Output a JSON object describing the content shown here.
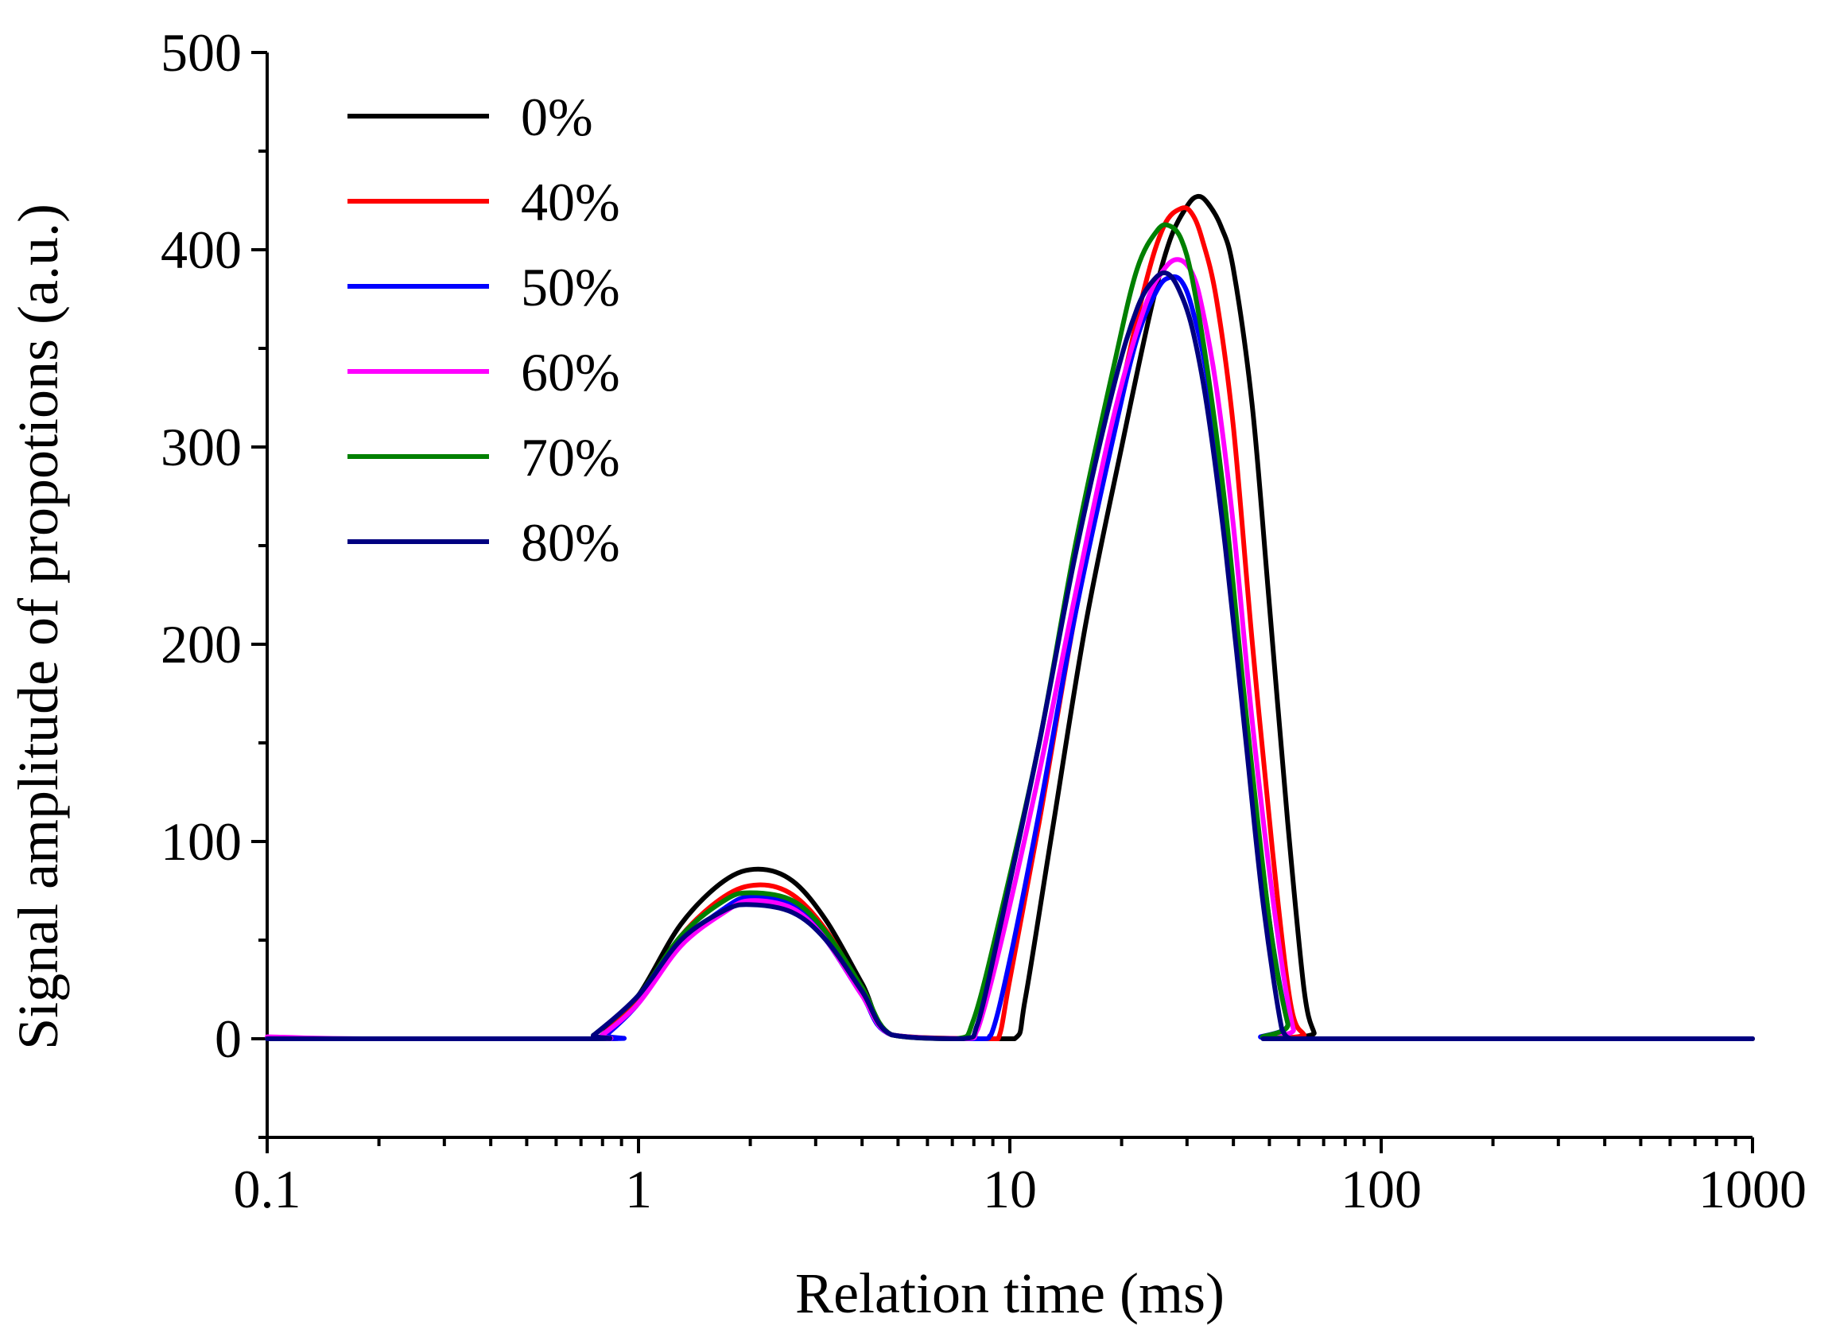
{
  "chart_data": {
    "type": "line",
    "title": "",
    "xlabel": "Relation time (ms)",
    "ylabel": "Signal amplitude of propotions (a.u.)",
    "xscale": "log",
    "xlim": [
      0.1,
      1000
    ],
    "ylim": [
      -50,
      500
    ],
    "xticks": [
      0.1,
      1,
      10,
      100,
      1000
    ],
    "xtick_labels": [
      "0.1",
      "1",
      "10",
      "100",
      "1000"
    ],
    "yticks": [
      0,
      100,
      200,
      300,
      400,
      500
    ],
    "ytick_labels": [
      "0",
      "100",
      "200",
      "300",
      "400",
      "500"
    ],
    "grid": false,
    "legend_position": "top-left",
    "series": [
      {
        "name": "0%",
        "color": "#000000",
        "x": [
          0.1,
          0.75,
          0.8,
          1.0,
          1.3,
          1.7,
          2.1,
          2.6,
          3.2,
          4.0,
          4.8,
          8.0,
          10.3,
          11,
          13,
          16,
          20,
          24,
          27,
          30,
          32,
          34,
          37,
          40,
          45,
          50,
          56,
          62,
          66,
          68,
          1000
        ],
        "y": [
          0,
          0,
          2,
          22,
          58,
          80,
          86,
          80,
          60,
          28,
          2,
          0,
          0,
          20,
          105,
          210,
          300,
          370,
          405,
          422,
          427,
          424,
          412,
          390,
          320,
          220,
          110,
          25,
          3,
          0,
          0
        ]
      },
      {
        "name": "40%",
        "color": "#ff0000",
        "x": [
          0.1,
          0.75,
          0.8,
          1.0,
          1.3,
          1.7,
          2.1,
          2.6,
          3.2,
          4.0,
          4.8,
          8.5,
          9.3,
          10,
          12,
          15,
          19,
          23,
          26,
          29,
          31,
          33,
          36,
          40,
          45,
          51,
          57,
          62,
          64,
          1000
        ],
        "y": [
          0,
          0,
          2,
          20,
          52,
          72,
          78,
          73,
          55,
          25,
          2,
          0,
          0,
          30,
          110,
          215,
          310,
          380,
          412,
          421,
          418,
          405,
          375,
          310,
          200,
          95,
          18,
          2,
          0,
          0
        ]
      },
      {
        "name": "50%",
        "color": "#0000ff",
        "x": [
          0.1,
          0.78,
          0.82,
          1.0,
          1.3,
          1.7,
          2.0,
          2.6,
          3.2,
          4.0,
          4.8,
          8.2,
          8.9,
          10,
          12,
          15,
          19,
          22,
          25,
          27,
          29,
          31,
          34,
          38,
          43,
          50,
          56,
          59,
          1000
        ],
        "y": [
          0,
          0,
          2,
          18,
          48,
          66,
          72,
          68,
          50,
          22,
          2,
          0,
          2,
          40,
          115,
          215,
          305,
          355,
          380,
          386,
          384,
          370,
          335,
          265,
          165,
          60,
          8,
          0,
          0
        ]
      },
      {
        "name": "60%",
        "color": "#ff00ff",
        "x": [
          0.1,
          0.18,
          0.75,
          0.8,
          1.0,
          1.3,
          1.7,
          2.0,
          2.6,
          3.2,
          4.0,
          4.8,
          7.6,
          8.2,
          9.5,
          12,
          15,
          19,
          23,
          26,
          28.5,
          31,
          33,
          36,
          40,
          45,
          52,
          58,
          62,
          1000
        ],
        "y": [
          1,
          0,
          0,
          2,
          18,
          47,
          64,
          70,
          66,
          50,
          22,
          2,
          0,
          5,
          50,
          135,
          225,
          315,
          370,
          390,
          395,
          388,
          370,
          330,
          260,
          160,
          60,
          5,
          0,
          0
        ]
      },
      {
        "name": "70%",
        "color": "#008000",
        "x": [
          0.1,
          0.72,
          0.76,
          1.0,
          1.3,
          1.7,
          2.0,
          2.6,
          3.2,
          4.0,
          4.8,
          7.2,
          8.0,
          9.5,
          12,
          15,
          19,
          22,
          25,
          27,
          29,
          31,
          34,
          38,
          43,
          50,
          56,
          60,
          1000
        ],
        "y": [
          0,
          0,
          2,
          22,
          52,
          70,
          74,
          70,
          54,
          26,
          2,
          0,
          10,
          65,
          150,
          250,
          340,
          390,
          410,
          412,
          405,
          385,
          340,
          270,
          170,
          60,
          8,
          0,
          0
        ]
      },
      {
        "name": "80%",
        "color": "#000080",
        "x": [
          0.1,
          0.72,
          0.76,
          1.0,
          1.3,
          1.7,
          2.0,
          2.6,
          3.2,
          4.0,
          4.8,
          7.5,
          8.2,
          9.5,
          12,
          15,
          19,
          22,
          24.5,
          26.5,
          28.5,
          31,
          34,
          38,
          43,
          48,
          54,
          57,
          60,
          1000
        ],
        "y": [
          0,
          0,
          2,
          22,
          50,
          65,
          68,
          64,
          50,
          24,
          2,
          0,
          8,
          60,
          150,
          245,
          330,
          370,
          385,
          388,
          380,
          360,
          320,
          250,
          155,
          70,
          5,
          0,
          0,
          0
        ]
      }
    ]
  }
}
